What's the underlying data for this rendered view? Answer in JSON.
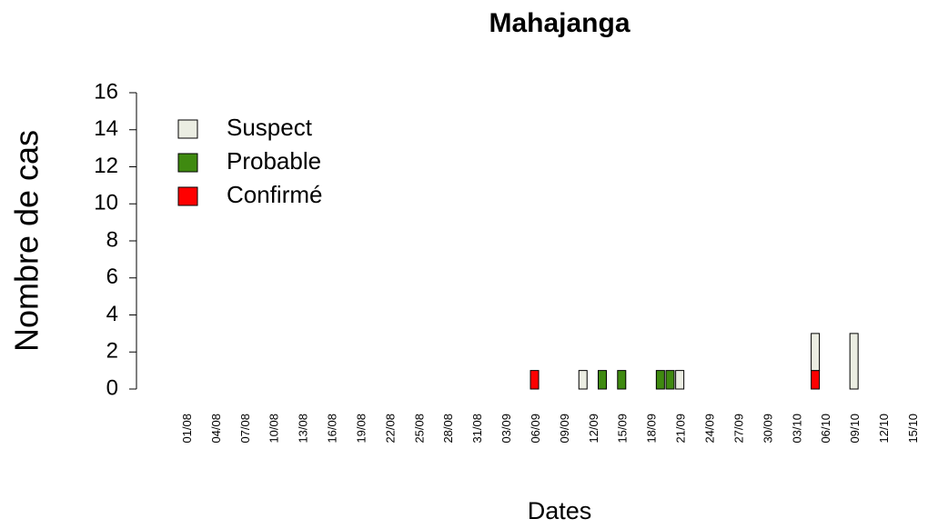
{
  "chart_data": {
    "type": "stacked-bar",
    "title": "Mahajanga",
    "xlabel": "Dates",
    "ylabel": "Nombre de cas",
    "categories": [
      "01/08",
      null,
      null,
      "04/08",
      null,
      null,
      "07/08",
      null,
      null,
      "10/08",
      null,
      null,
      "13/08",
      null,
      null,
      "16/08",
      null,
      null,
      "19/08",
      null,
      null,
      "22/08",
      null,
      null,
      "25/08",
      null,
      null,
      "28/08",
      null,
      null,
      "31/08",
      null,
      null,
      "03/09",
      null,
      null,
      "06/09",
      null,
      null,
      "09/09",
      null,
      null,
      "12/09",
      null,
      null,
      "15/09",
      null,
      null,
      "18/09",
      null,
      null,
      "21/09",
      null,
      null,
      "24/09",
      null,
      null,
      "27/09",
      null,
      null,
      "30/09",
      null,
      null,
      "03/10",
      null,
      null,
      "06/10",
      null,
      null,
      "09/10",
      null,
      null,
      "12/10",
      null,
      null,
      "15/10",
      null
    ],
    "series": [
      {
        "name": "Suspect",
        "color": "#ebede2",
        "values": [
          0,
          0,
          0,
          0,
          0,
          0,
          0,
          0,
          0,
          0,
          0,
          0,
          0,
          0,
          0,
          0,
          0,
          0,
          0,
          0,
          0,
          0,
          0,
          0,
          0,
          0,
          0,
          0,
          0,
          0,
          0,
          0,
          0,
          0,
          0,
          0,
          0,
          0,
          0,
          0,
          0,
          1,
          0,
          0,
          0,
          0,
          0,
          0,
          0,
          0,
          0,
          1,
          0,
          0,
          0,
          0,
          0,
          0,
          0,
          0,
          0,
          0,
          0,
          0,
          0,
          2,
          0,
          0,
          0,
          3,
          0,
          0,
          0,
          0,
          0,
          0,
          0
        ]
      },
      {
        "name": "Probable",
        "color": "#3f8a10",
        "values": [
          0,
          0,
          0,
          0,
          0,
          0,
          0,
          0,
          0,
          0,
          0,
          0,
          0,
          0,
          0,
          0,
          0,
          0,
          0,
          0,
          0,
          0,
          0,
          0,
          0,
          0,
          0,
          0,
          0,
          0,
          0,
          0,
          0,
          0,
          0,
          0,
          0,
          0,
          0,
          0,
          0,
          0,
          0,
          1,
          0,
          1,
          0,
          0,
          0,
          1,
          1,
          0,
          0,
          0,
          0,
          0,
          0,
          0,
          0,
          0,
          0,
          0,
          0,
          0,
          0,
          0,
          0,
          0,
          0,
          0,
          0,
          0,
          0,
          0,
          0,
          0,
          0
        ]
      },
      {
        "name": "Confirmé",
        "color": "#ff0000",
        "values": [
          0,
          0,
          0,
          0,
          0,
          0,
          0,
          0,
          0,
          0,
          0,
          0,
          0,
          0,
          0,
          0,
          0,
          0,
          0,
          0,
          0,
          0,
          0,
          0,
          0,
          0,
          0,
          0,
          0,
          0,
          0,
          0,
          0,
          0,
          0,
          0,
          1,
          0,
          0,
          0,
          0,
          0,
          0,
          0,
          0,
          0,
          0,
          0,
          0,
          0,
          0,
          0,
          0,
          0,
          0,
          0,
          0,
          0,
          0,
          0,
          0,
          0,
          0,
          0,
          0,
          1,
          0,
          0,
          0,
          0,
          0,
          0,
          0,
          0,
          0,
          0,
          0
        ]
      }
    ],
    "ylim": [
      0,
      16
    ],
    "yticks": [
      0,
      2,
      4,
      6,
      8,
      10,
      12,
      14,
      16
    ],
    "legend": "top-left"
  }
}
